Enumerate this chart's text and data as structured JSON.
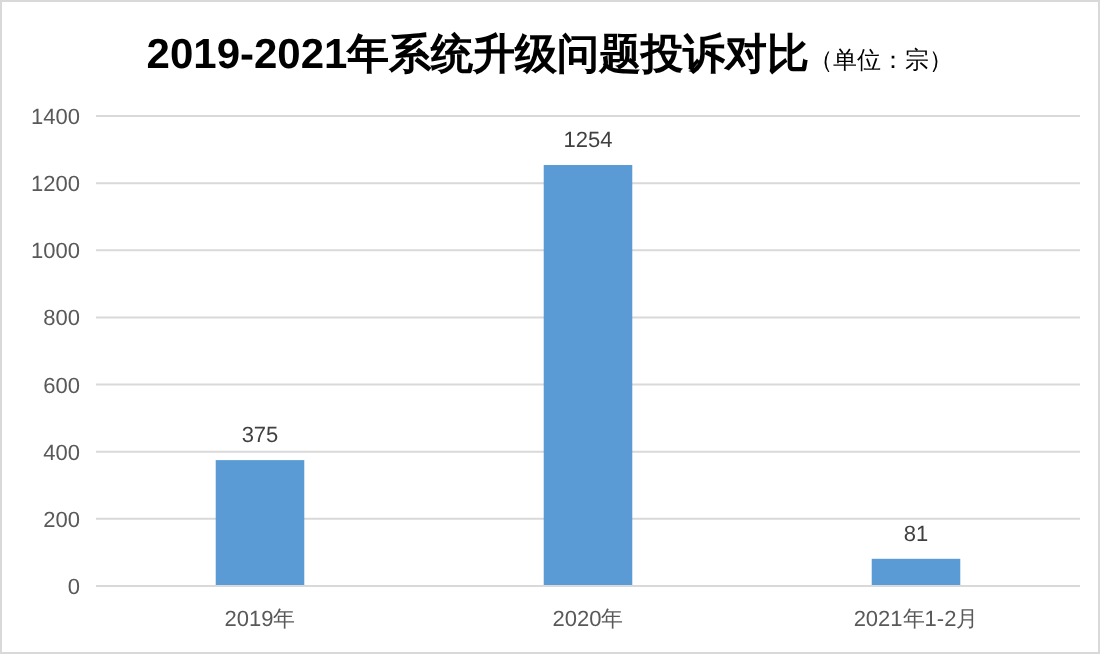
{
  "chart_data": {
    "type": "bar",
    "title": "2019-2021年系统升级问题投诉对比",
    "subtitle": "（单位：宗）",
    "categories": [
      "2019年",
      "2020年",
      "2021年1-2月"
    ],
    "values": [
      375,
      1254,
      81
    ],
    "color": "#5b9bd5",
    "ylim": [
      0,
      1400
    ],
    "yticks": [
      0,
      200,
      400,
      600,
      800,
      1000,
      1200,
      1400
    ],
    "grid": "y",
    "data_labels": true
  }
}
